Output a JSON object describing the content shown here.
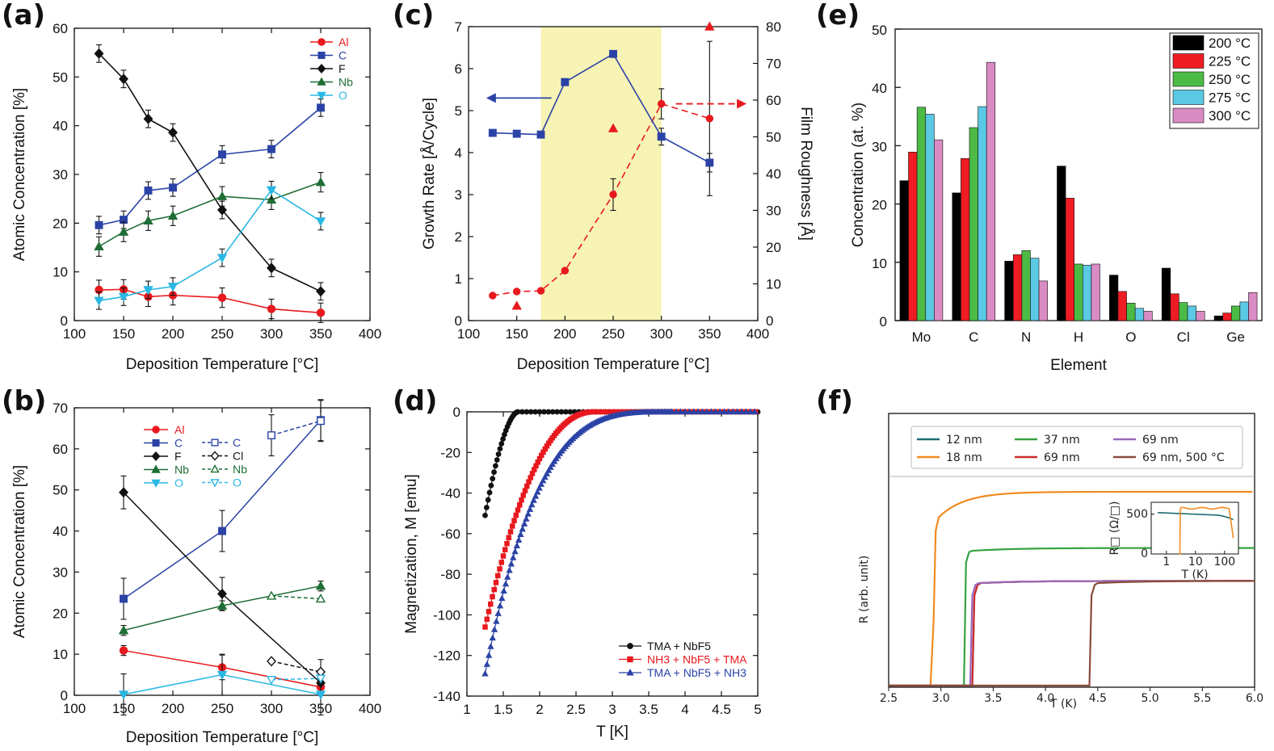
{
  "chart_data": [
    {
      "id": "a",
      "panel_label": "(a)",
      "type": "line",
      "xlabel": "Deposition Temperature [°C]",
      "ylabel": "Atomic Concentration [%]",
      "xlim": [
        100,
        400
      ],
      "ylim": [
        0,
        60
      ],
      "xticks": [
        100,
        150,
        200,
        250,
        300,
        350,
        400
      ],
      "yticks": [
        0,
        10,
        20,
        30,
        40,
        50,
        60
      ],
      "legend_position": "top-right",
      "x": [
        125,
        150,
        175,
        200,
        250,
        300,
        350
      ],
      "series": [
        {
          "name": "Al",
          "color": "#e8191e",
          "marker": "circle",
          "filled": true,
          "values": [
            6.3,
            6.4,
            4.9,
            5.2,
            4.7,
            2.4,
            1.6
          ],
          "errors": [
            2,
            2,
            2,
            2,
            2,
            2,
            2
          ]
        },
        {
          "name": "C",
          "color": "#2b43a6",
          "marker": "square",
          "filled": true,
          "values": [
            19.6,
            20.7,
            26.7,
            27.3,
            34.1,
            35.2,
            43.7
          ],
          "errors": [
            1.8,
            1.8,
            1.8,
            1.8,
            1.8,
            1.8,
            1.8
          ]
        },
        {
          "name": "F",
          "color": "#111111",
          "marker": "diamond",
          "filled": true,
          "values": [
            54.8,
            49.6,
            41.4,
            38.6,
            22.7,
            10.8,
            6.0
          ],
          "errors": [
            1.8,
            1.8,
            1.8,
            1.8,
            1.8,
            1.8,
            1.8
          ]
        },
        {
          "name": "Nb",
          "color": "#1f6e35",
          "marker": "triangle",
          "filled": true,
          "values": [
            15.2,
            18.2,
            20.5,
            21.5,
            25.5,
            24.8,
            28.4
          ],
          "errors": [
            2,
            2,
            2,
            2,
            2,
            2,
            2
          ]
        },
        {
          "name": "O",
          "color": "#29b7e3",
          "marker": "triangle-down",
          "filled": true,
          "values": [
            4.1,
            4.9,
            6.3,
            7.0,
            12.9,
            26.8,
            20.4
          ],
          "errors": [
            1.8,
            1.8,
            1.8,
            1.8,
            1.8,
            1.8,
            1.8
          ]
        }
      ]
    },
    {
      "id": "b",
      "panel_label": "(b)",
      "type": "line",
      "xlabel": "Deposition Temperature [°C]",
      "ylabel": "Atomic Concentration [%]",
      "xlim": [
        100,
        400
      ],
      "ylim": [
        0,
        70
      ],
      "xticks": [
        100,
        150,
        200,
        250,
        300,
        350,
        400
      ],
      "yticks": [
        0,
        10,
        20,
        30,
        40,
        50,
        60,
        70
      ],
      "legend_position": "top-center",
      "series": [
        {
          "name": "Al",
          "color": "#e8191e",
          "marker": "circle",
          "filled": true,
          "dashed": false,
          "x": [
            150,
            250,
            350
          ],
          "values": [
            10.9,
            6.8,
            2.0
          ],
          "errors": [
            1.2,
            3,
            2
          ]
        },
        {
          "name": "C",
          "color": "#2b43a6",
          "marker": "square",
          "filled": true,
          "dashed": false,
          "x": [
            150,
            250,
            350
          ],
          "values": [
            23.5,
            40.0,
            67.0
          ],
          "errors": [
            5,
            5,
            5
          ]
        },
        {
          "name": "F",
          "color": "#111111",
          "marker": "diamond",
          "filled": true,
          "dashed": false,
          "x": [
            150,
            250,
            350
          ],
          "values": [
            49.4,
            24.7,
            3.0
          ],
          "errors": [
            4,
            4,
            3
          ]
        },
        {
          "name": "Nb",
          "color": "#1f6e35",
          "marker": "triangle",
          "filled": true,
          "dashed": false,
          "x": [
            150,
            250,
            350
          ],
          "values": [
            15.8,
            21.8,
            26.6
          ],
          "errors": [
            1.2,
            1.2,
            1.2
          ]
        },
        {
          "name": "O",
          "color": "#29b7e3",
          "marker": "triangle-down",
          "filled": true,
          "dashed": false,
          "x": [
            150,
            250,
            350
          ],
          "values": [
            0.2,
            5.0,
            0.2
          ],
          "errors": [
            5,
            5,
            5
          ]
        },
        {
          "name": "C",
          "color": "#2b43a6",
          "marker": "square",
          "filled": false,
          "dashed": true,
          "x": [
            300,
            350
          ],
          "values": [
            63.3,
            66.8
          ],
          "errors": [
            5,
            5
          ]
        },
        {
          "name": "Cl",
          "color": "#111111",
          "marker": "diamond",
          "filled": false,
          "dashed": true,
          "x": [
            300,
            350
          ],
          "values": [
            8.3,
            5.7
          ],
          "errors": [
            0,
            3
          ]
        },
        {
          "name": "Nb",
          "color": "#1f6e35",
          "marker": "triangle",
          "filled": false,
          "dashed": true,
          "x": [
            300,
            350
          ],
          "values": [
            24.2,
            23.5
          ],
          "errors": [
            0,
            0
          ]
        },
        {
          "name": "O",
          "color": "#29b7e3",
          "marker": "triangle-down",
          "filled": false,
          "dashed": true,
          "x": [
            300,
            350
          ],
          "values": [
            3.8,
            4.1
          ],
          "errors": [
            0,
            0
          ]
        }
      ]
    },
    {
      "id": "c",
      "panel_label": "(c)",
      "type": "line",
      "xlabel": "Deposition Temperature [°C]",
      "ylabel": "Growth Rate [Å/Cycle]",
      "ylabel_right": "Film Roughness [Å]",
      "xlim": [
        100,
        400
      ],
      "ylim": [
        0,
        7
      ],
      "ylim_right": [
        0,
        80
      ],
      "xticks": [
        100,
        150,
        200,
        250,
        300,
        350,
        400
      ],
      "yticks": [
        0,
        1,
        2,
        3,
        4,
        5,
        6,
        7
      ],
      "yticks_right": [
        0,
        10,
        20,
        30,
        40,
        50,
        60,
        70,
        80
      ],
      "shaded_region": {
        "x": [
          175,
          300
        ],
        "color": "#f7f3b4"
      },
      "series": [
        {
          "name": "Growth Rate",
          "axis": "left",
          "color": "#2b43a6",
          "marker": "square",
          "x": [
            125,
            150,
            175,
            200,
            250,
            300,
            350
          ],
          "values": [
            4.47,
            4.45,
            4.43,
            5.68,
            6.35,
            4.38,
            3.76
          ],
          "errors": [
            0,
            0,
            0,
            0,
            0,
            0.2,
            0.22
          ]
        },
        {
          "name": "Film Roughness",
          "axis": "right",
          "color": "#e8191e",
          "marker": "circle",
          "dashed": true,
          "x": [
            125,
            150,
            175,
            200,
            250,
            300,
            350
          ],
          "values": [
            6.8,
            7.9,
            8.1,
            13.6,
            34.3,
            59.0,
            55.0
          ],
          "errors": [
            0,
            0,
            0,
            0,
            4.3,
            4.1,
            21
          ]
        },
        {
          "name": "Film Roughness (triangles)",
          "axis": "right",
          "color": "#e8191e",
          "marker": "triangle",
          "points_only": true,
          "x": [
            150,
            250,
            350
          ],
          "values": [
            4.0,
            52.3,
            80.0
          ]
        }
      ],
      "arrows": [
        {
          "axis": "left",
          "direction": "left"
        },
        {
          "axis": "right",
          "direction": "right"
        }
      ]
    },
    {
      "id": "d",
      "panel_label": "(d)",
      "type": "line",
      "xlabel": "T [K]",
      "ylabel": "Magnetization, M [emu]",
      "xlim": [
        1,
        5
      ],
      "ylim": [
        -140,
        0
      ],
      "xticks": [
        1,
        1.5,
        2,
        2.5,
        3,
        3.5,
        4,
        4.5,
        5
      ],
      "yticks": [
        -140,
        -120,
        -100,
        -80,
        -60,
        -40,
        -20,
        0
      ],
      "legend_position": "bottom-right",
      "series": [
        {
          "name": "TMA + NbF5",
          "color": "#111111",
          "marker": "circle",
          "tc": 1.7,
          "tmin": 1.25,
          "min": -51,
          "exp": 1.7
        },
        {
          "name": "NH3 + NbF5 + TMA",
          "color": "#e8191e",
          "marker": "square",
          "tc": 2.75,
          "tmin": 1.25,
          "min": -106,
          "exp": 2.2
        },
        {
          "name": "TMA + NbF5 + NH3",
          "color": "#2b43a6",
          "marker": "triangle",
          "tc": 3.82,
          "tmin": 1.25,
          "min": -129,
          "exp": 3.6
        }
      ]
    },
    {
      "id": "e",
      "panel_label": "(e)",
      "type": "bar",
      "xlabel": "Element",
      "ylabel": "Concentration (at. %)",
      "ylim": [
        0,
        50
      ],
      "yticks": [
        0,
        10,
        20,
        30,
        40,
        50
      ],
      "legend_position": "top-right",
      "categories": [
        "Mo",
        "C",
        "N",
        "H",
        "O",
        "Cl",
        "Ge"
      ],
      "series": [
        {
          "name": "200 °C",
          "color": "#000000",
          "values": [
            24.0,
            21.9,
            10.2,
            26.5,
            7.8,
            9.0,
            0.8
          ]
        },
        {
          "name": "225 °C",
          "color": "#ef1c24",
          "values": [
            28.9,
            27.8,
            11.3,
            21.0,
            5.0,
            4.6,
            1.3
          ]
        },
        {
          "name": "250 °C",
          "color": "#4cbb45",
          "values": [
            36.6,
            33.1,
            12.0,
            9.7,
            3.0,
            3.1,
            2.5
          ]
        },
        {
          "name": "275 °C",
          "color": "#5bc9e4",
          "values": [
            35.4,
            36.7,
            10.7,
            9.5,
            2.1,
            2.5,
            3.2
          ]
        },
        {
          "name": "300 °C",
          "color": "#d98bc3",
          "values": [
            31.0,
            44.3,
            6.8,
            9.7,
            1.6,
            1.6,
            4.8
          ]
        }
      ]
    },
    {
      "id": "f",
      "panel_label": "(f)",
      "type": "line",
      "xlabel": "T (K)",
      "ylabel": "R (arb. unit)",
      "xlim": [
        2.5,
        6.0
      ],
      "xticks": [
        2.5,
        3.0,
        3.5,
        4.0,
        4.5,
        5.0,
        5.5,
        6.0
      ],
      "xtick_labels": [
        "2.5",
        "3.0",
        "3.5",
        "4.0",
        "4.5",
        "5.0",
        "5.5",
        "6.0"
      ],
      "legend_position": "top",
      "series": [
        {
          "name": "12 nm",
          "color": "#1b6c72",
          "tc": 3.3,
          "level": 0.54
        },
        {
          "name": "18 nm",
          "color": "#f28a1f",
          "tc": 2.9,
          "level": 1.0
        },
        {
          "name": "37 nm",
          "color": "#37a241",
          "tc": 3.22,
          "level": 0.71
        },
        {
          "name": "69 nm",
          "color": "#cc2a2a",
          "tc": 3.3,
          "level": 0.54
        },
        {
          "name": "69 nm",
          "color": "#9b67b8",
          "tc": 3.28,
          "level": 0.54
        },
        {
          "name": "69 nm, 500 °C",
          "color": "#8a4b3a",
          "tc": 4.42,
          "level": 0.54
        }
      ],
      "inset": {
        "xlabel": "T (K)",
        "ylabel": "R□ (Ω/□)",
        "xscale": "log",
        "xlim": [
          0.3,
          300
        ],
        "ylim": [
          0,
          650
        ],
        "xtick_labels": [
          "1",
          "10",
          "100"
        ],
        "ytick_labels": [
          "0",
          "500"
        ]
      }
    }
  ]
}
